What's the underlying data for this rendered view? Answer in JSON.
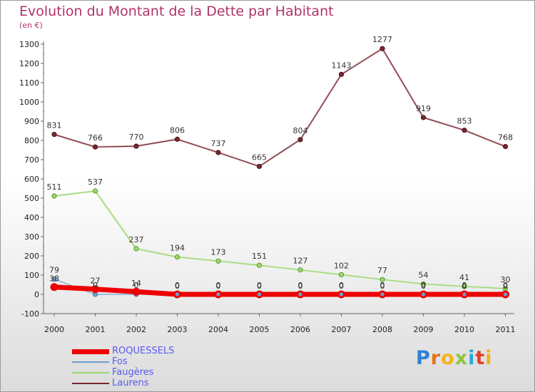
{
  "header": {
    "title": "Evolution du Montant de la Dette par Habitant",
    "unit": "(en €)"
  },
  "logo": {
    "text": "Proxiti",
    "colors": [
      "#2f7fd6",
      "#e8731f",
      "#f2b318",
      "#8dc63f",
      "#2aa7d8",
      "#e0402a",
      "#f2b318"
    ]
  },
  "chart_data": {
    "type": "line",
    "x": [
      "2000",
      "2001",
      "2002",
      "2003",
      "2004",
      "2005",
      "2006",
      "2007",
      "2008",
      "2009",
      "2010",
      "2011"
    ],
    "ylim": [
      -100,
      1300
    ],
    "yticks": [
      -100,
      0,
      100,
      200,
      300,
      400,
      500,
      600,
      700,
      800,
      900,
      1000,
      1100,
      1200,
      1300
    ],
    "grid": false,
    "legend_position": "bottom-left",
    "series": [
      {
        "name": "ROQUESSELS",
        "color": "#ee0000",
        "values": [
          38,
          27,
          14,
          0,
          0,
          0,
          0,
          0,
          0,
          0,
          0,
          0
        ],
        "labels": [
          "38",
          "27",
          "14",
          "0",
          "0",
          "0",
          "0",
          "0",
          "0",
          "0",
          "0",
          "0"
        ]
      },
      {
        "name": "Fos",
        "color": "#6fa0d0",
        "values": [
          79,
          0,
          0,
          0,
          0,
          0,
          0,
          0,
          0,
          0,
          0,
          0
        ],
        "labels": [
          "79",
          "0",
          "0",
          "0",
          "0",
          "0",
          "0",
          "0",
          "0",
          "0",
          "0",
          "0"
        ]
      },
      {
        "name": "Faugères",
        "color": "#9ad66b",
        "values": [
          511,
          537,
          237,
          194,
          173,
          151,
          127,
          102,
          77,
          54,
          41,
          30
        ],
        "labels": [
          "511",
          "537",
          "237",
          "194",
          "173",
          "151",
          "127",
          "102",
          "77",
          "54",
          "41",
          "30"
        ]
      },
      {
        "name": "Laurens",
        "color": "#7a2630",
        "values": [
          831,
          766,
          770,
          806,
          737,
          665,
          804,
          1143,
          1277,
          919,
          853,
          768
        ],
        "labels": [
          "831",
          "766",
          "770",
          "806",
          "737",
          "665",
          "804",
          "1143",
          "1277",
          "919",
          "853",
          "768"
        ]
      }
    ]
  }
}
